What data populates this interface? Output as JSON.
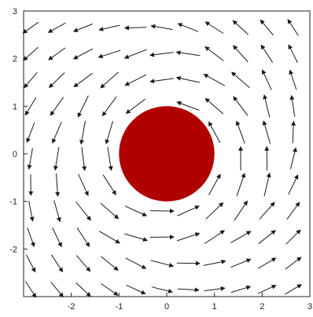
{
  "chart_data": {
    "type": "vector-field",
    "title": "",
    "xlabel": "",
    "ylabel": "",
    "xlim": [
      -3,
      3
    ],
    "ylim": [
      -3,
      3
    ],
    "grid": false,
    "x_tick_values": [
      -2,
      -1,
      0,
      1,
      2,
      3
    ],
    "x_tick_labels": [
      "-2",
      "-1",
      "0",
      "1",
      "2",
      "3"
    ],
    "y_tick_values": [
      3,
      2,
      1,
      0,
      -1,
      -2
    ],
    "y_tick_labels": [
      "3",
      "2",
      "1",
      "0",
      "-1",
      "-2"
    ],
    "field": {
      "description_of_pattern": "counterclockwise swirling flow around a solid disk",
      "grid_x": [
        -2.85,
        -2.3,
        -1.75,
        -1.2,
        -0.65,
        -0.1,
        0.45,
        1.0,
        1.55,
        2.1,
        2.65
      ],
      "grid_y": [
        -2.85,
        -2.3,
        -1.75,
        -1.2,
        -0.65,
        -0.1,
        0.45,
        1.0,
        1.55,
        2.1,
        2.65
      ],
      "arrow_color": "#1a1a1a"
    },
    "obstacle": {
      "shape": "circle",
      "center": [
        0,
        0
      ],
      "radius": 1.0,
      "color": "#b00000"
    }
  }
}
